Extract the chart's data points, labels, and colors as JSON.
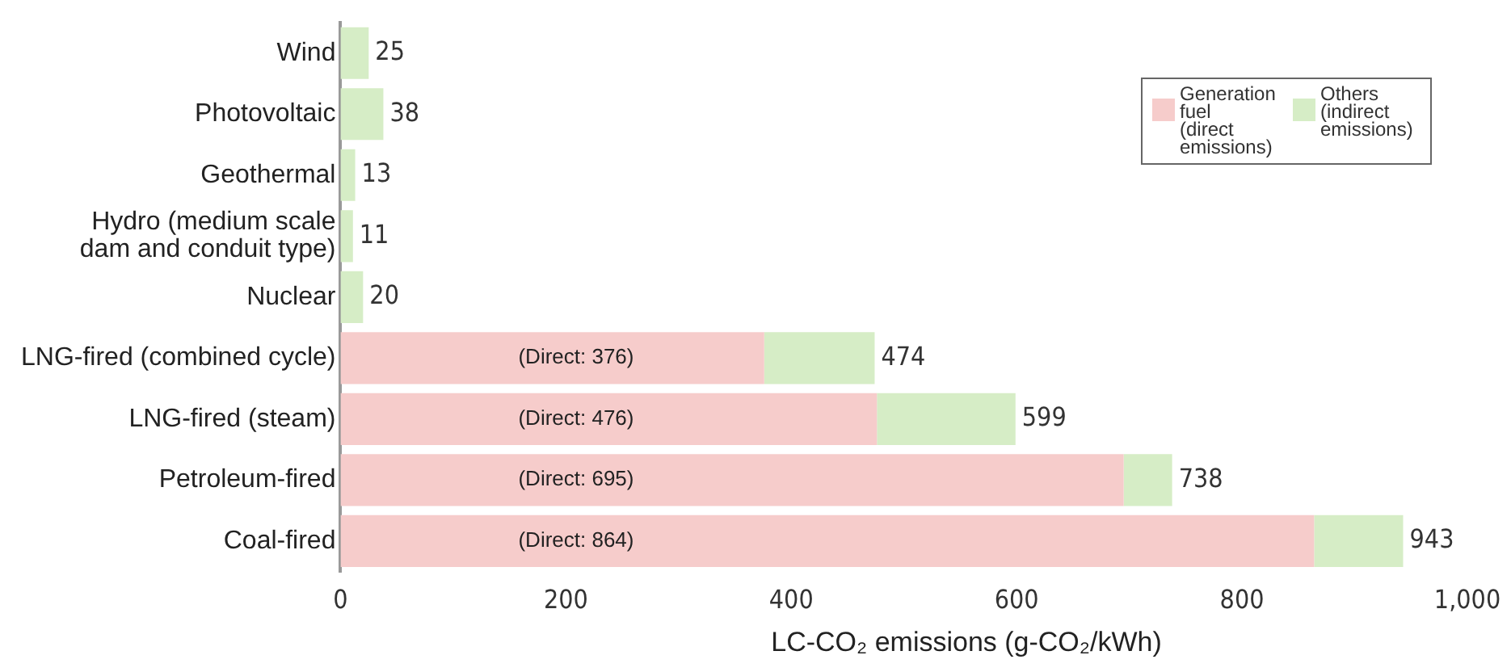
{
  "chart_data": {
    "type": "bar",
    "orientation": "horizontal",
    "stacked": true,
    "categories": [
      "Wind",
      "Photovoltaic",
      "Geothermal",
      "Hydro (medium scale dam and conduit type)",
      "Nuclear",
      "LNG-fired (combined cycle)",
      "LNG-fired (steam)",
      "Petroleum-fired",
      "Coal-fired"
    ],
    "series": [
      {
        "name": "Generation fuel (direct emissions)",
        "color": "#f6cccb",
        "values": [
          null,
          null,
          null,
          null,
          null,
          376,
          476,
          695,
          864
        ],
        "value_labels": [
          null,
          null,
          null,
          null,
          null,
          "(Direct: 376)",
          "(Direct: 476)",
          "(Direct: 695)",
          "(Direct: 864)"
        ]
      },
      {
        "name": "Others (indirect emissions)",
        "color": "#d6edc6",
        "values": [
          25,
          38,
          13,
          11,
          20,
          98,
          123,
          43,
          79
        ]
      }
    ],
    "totals": [
      "25",
      "38",
      "13",
      "11",
      "20",
      "474",
      "599",
      "738",
      "943"
    ],
    "xlim": [
      0,
      1000
    ],
    "xticks": [
      0,
      200,
      400,
      600,
      800,
      {
        "value": 1000,
        "label": "1,000"
      }
    ],
    "xlabel": "LC-CO₂ emissions (g-CO₂/kWh)",
    "grid": false,
    "legend": "top right"
  }
}
